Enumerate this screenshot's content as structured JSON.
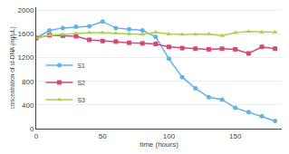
{
  "chart_data": {
    "type": "line",
    "x": [
      0,
      10,
      20,
      30,
      40,
      50,
      60,
      70,
      80,
      90,
      100,
      110,
      120,
      130,
      140,
      150,
      160,
      170,
      180
    ],
    "series": [
      {
        "name": "S1",
        "color": "#62B4E8",
        "marker": "circle",
        "values": [
          1530,
          1660,
          1700,
          1720,
          1730,
          1810,
          1700,
          1680,
          1660,
          1550,
          1180,
          870,
          680,
          530,
          490,
          350,
          280,
          210,
          130
        ]
      },
      {
        "name": "S2",
        "color": "#D4477A",
        "marker": "square",
        "values": [
          1530,
          1580,
          1570,
          1560,
          1500,
          1480,
          1470,
          1450,
          1440,
          1430,
          1380,
          1360,
          1350,
          1340,
          1350,
          1340,
          1270,
          1380,
          1350
        ]
      },
      {
        "name": "S3",
        "color": "#A8D44A",
        "marker": "triangle",
        "values": [
          1530,
          1580,
          1590,
          1610,
          1620,
          1620,
          1610,
          1600,
          1590,
          1630,
          1600,
          1590,
          1590,
          1600,
          1570,
          1620,
          1640,
          1630,
          1630
        ]
      }
    ],
    "xlim": [
      0,
      185
    ],
    "ylim": [
      0,
      2050
    ],
    "xticks": [
      0,
      50,
      100,
      150
    ],
    "yticks": [
      0,
      400,
      800,
      1200,
      1600,
      2000
    ],
    "xlabel": "time (hours)",
    "ylabel": "concentration of st-DNA (ng/μL)",
    "grid": "y",
    "legend": "center left"
  }
}
